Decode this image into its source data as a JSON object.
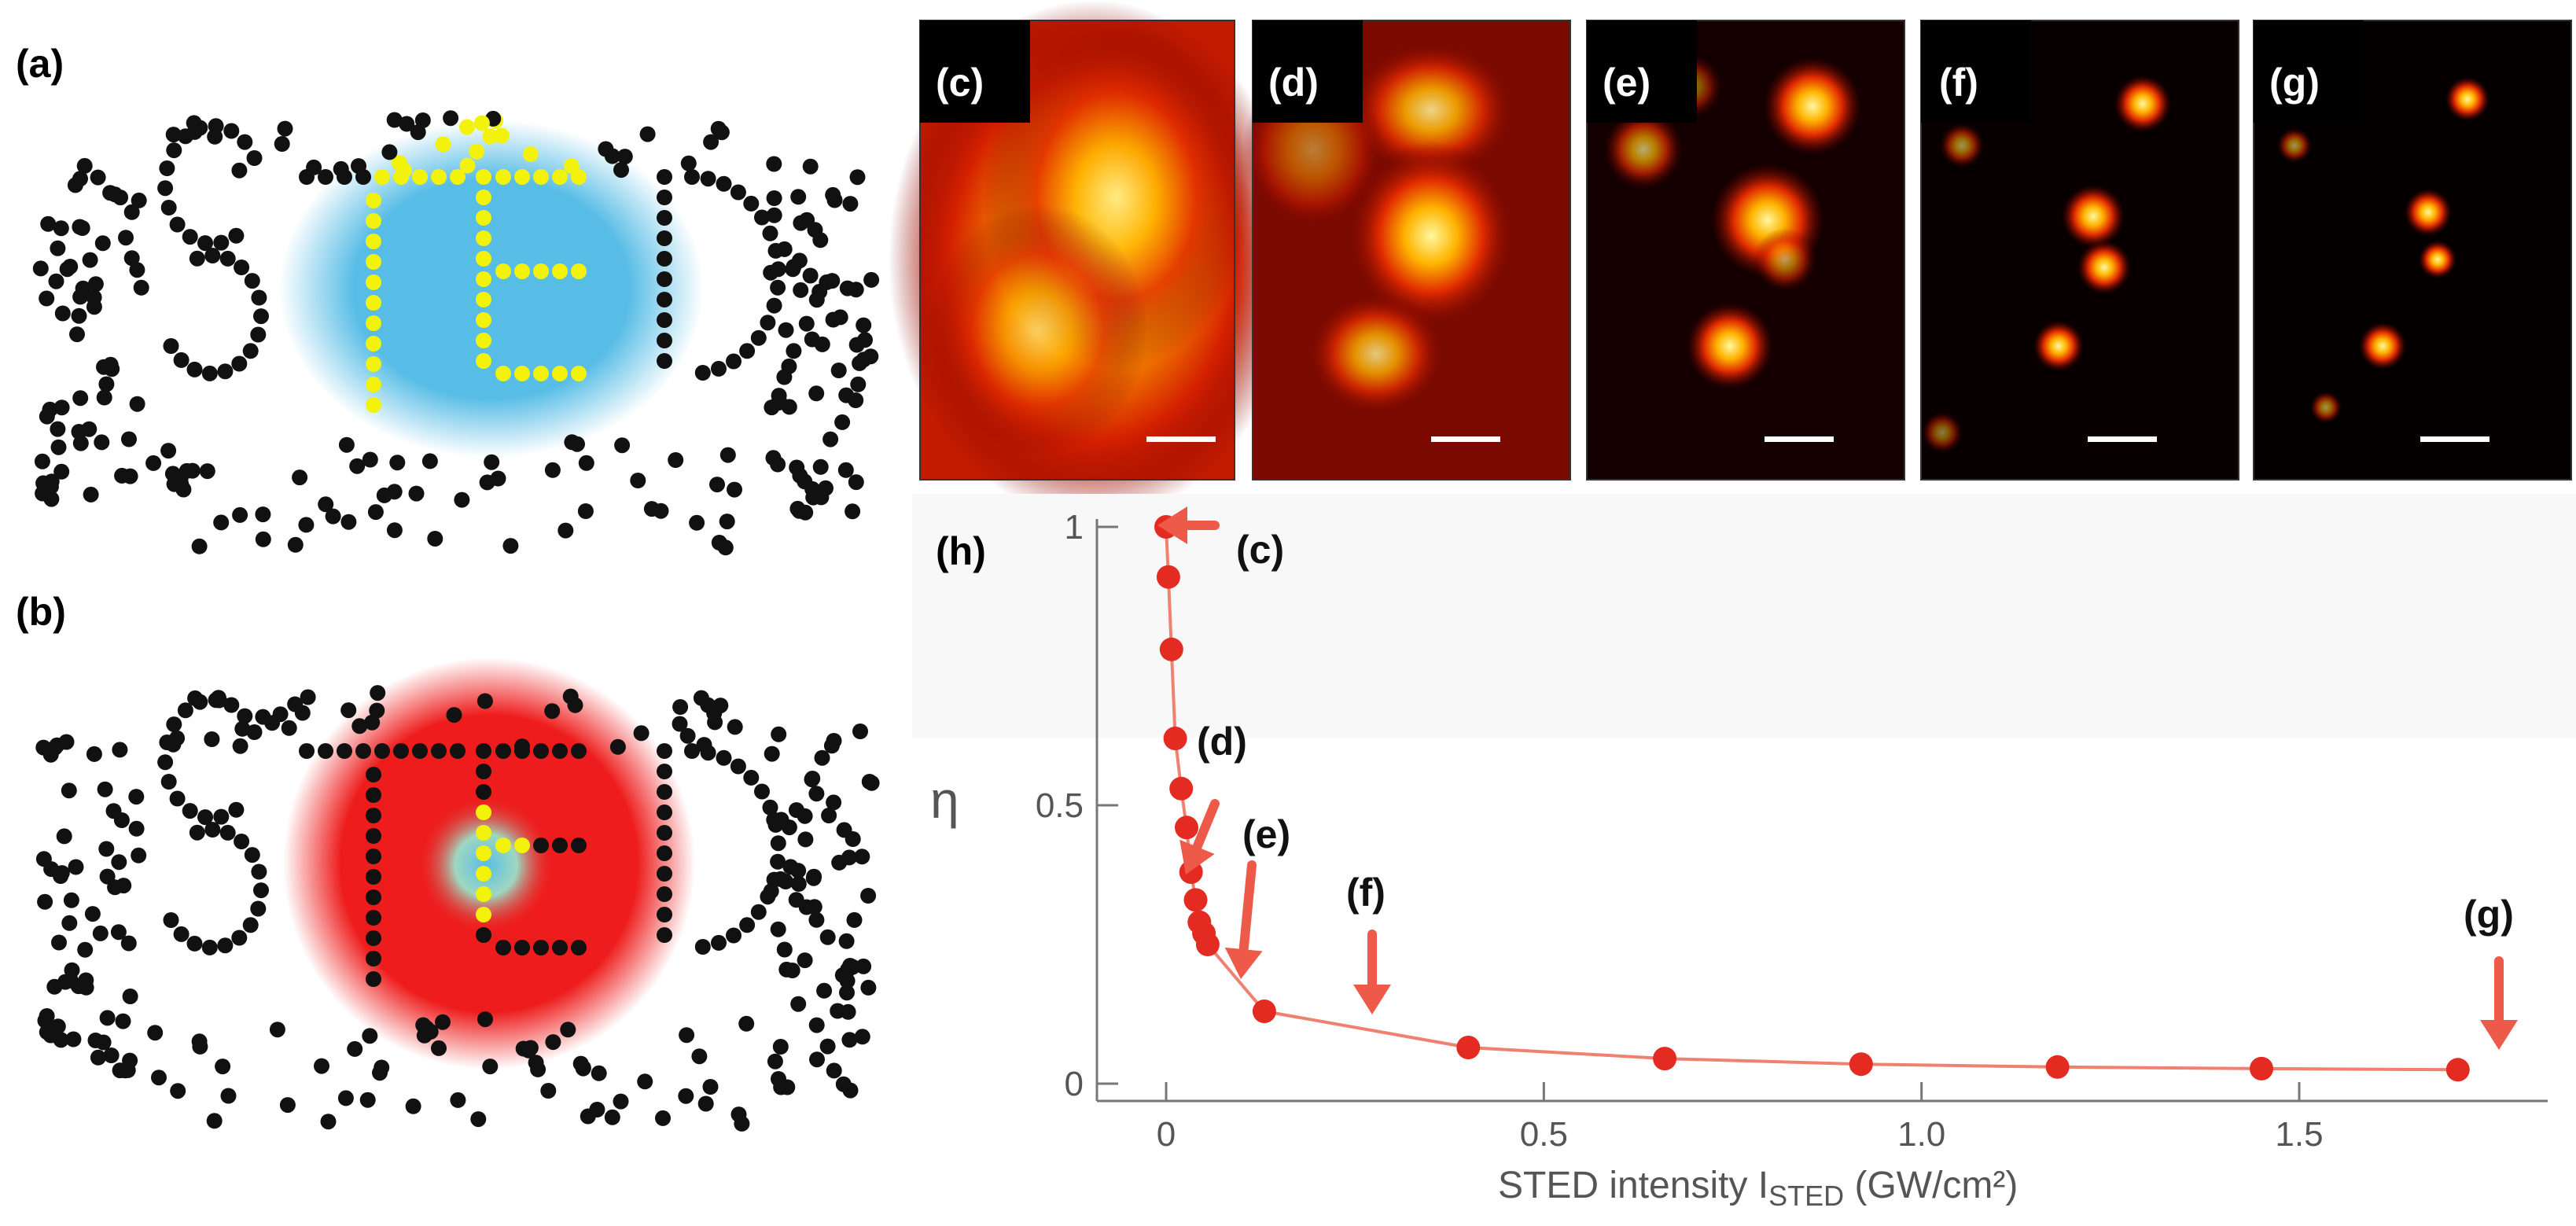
{
  "figure": {
    "panel_labels": {
      "a": "(a)",
      "b": "(b)",
      "c": "(c)",
      "d": "(d)",
      "e": "(e)",
      "f": "(f)",
      "g": "(g)",
      "h": "(h)"
    },
    "colors": {
      "excitation_blue": "#5bbfe6",
      "sted_red": "#ee1c1c",
      "fluorescent_yellow": "#f2f20a",
      "molecule_black": "#111111",
      "plot_red": "#e8332a",
      "arrow_salmon": "#ee5a4a",
      "hot_colormap": [
        "#000000",
        "#7a0000",
        "#e01800",
        "#ff8c00",
        "#fff05a"
      ]
    }
  },
  "chart_data": {
    "type": "line",
    "xlabel": "STED intensity I",
    "xlabel_sub": "STED",
    "xlabel_unit": " (GW/cm²)",
    "ylabel": "η",
    "xlim": [
      -0.05,
      1.78
    ],
    "ylim": [
      0,
      1.0
    ],
    "x_ticks": [
      0,
      0.5,
      1.0,
      1.5
    ],
    "x_tick_labels": [
      "0",
      "0.5",
      "1.0",
      "1.5"
    ],
    "y_ticks": [
      0,
      0.5,
      1
    ],
    "y_tick_labels": [
      "0",
      "0.5",
      "1"
    ],
    "grid": false,
    "series": [
      {
        "x": [
          0,
          0.003,
          0.007,
          0.012,
          0.02,
          0.027,
          0.033,
          0.039,
          0.044,
          0.05,
          0.055,
          0.13,
          0.4,
          0.66,
          0.92,
          1.18,
          1.45,
          1.71
        ],
        "y": [
          1.0,
          0.91,
          0.78,
          0.62,
          0.53,
          0.46,
          0.38,
          0.33,
          0.29,
          0.27,
          0.25,
          0.13,
          0.065,
          0.045,
          0.035,
          0.03,
          0.027,
          0.025
        ]
      }
    ],
    "annotations": [
      {
        "label": "(c)",
        "x": 0.0,
        "y": 1.0,
        "direction": "left"
      },
      {
        "label": "(d)",
        "x": 0.05,
        "y": 0.34,
        "direction": "down-left"
      },
      {
        "label": "(e)",
        "x": 0.12,
        "y": 0.17,
        "direction": "down"
      },
      {
        "label": "(f)",
        "x": 0.3,
        "y": 0.11,
        "direction": "down"
      },
      {
        "label": "(g)",
        "x": 1.71,
        "y": 0.04,
        "direction": "down"
      }
    ]
  }
}
